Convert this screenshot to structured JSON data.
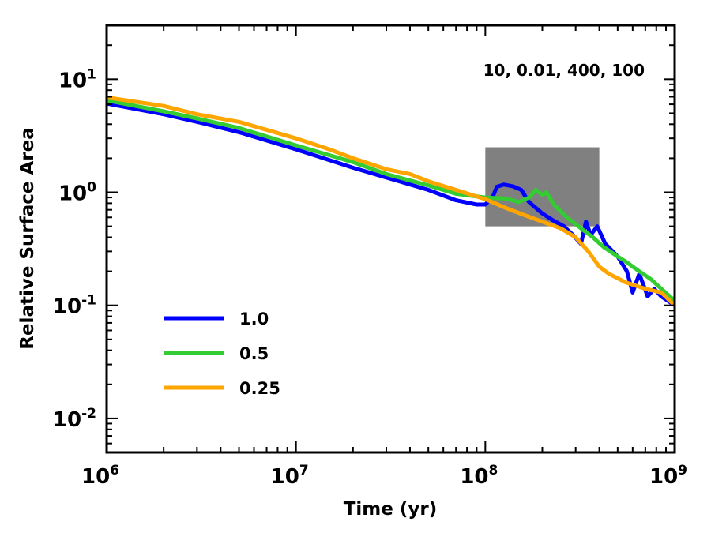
{
  "chart_data": {
    "type": "line",
    "title": "",
    "xlabel": "Time (yr)",
    "ylabel": "Relative Surface Area",
    "xscale": "log",
    "yscale": "log",
    "xlim": [
      1000000,
      1000000000
    ],
    "ylim": [
      0.005,
      30
    ],
    "annotation": "10, 0.01, 400, 100",
    "shaded_region": {
      "x": [
        100000000,
        400000000
      ],
      "y": [
        0.5,
        2.5
      ],
      "color": "#808080"
    },
    "x_ticks": [
      {
        "value": 1000000,
        "base": "10",
        "exp": "6"
      },
      {
        "value": 10000000,
        "base": "10",
        "exp": "7"
      },
      {
        "value": 100000000,
        "base": "10",
        "exp": "8"
      },
      {
        "value": 1000000000,
        "base": "10",
        "exp": "9"
      }
    ],
    "y_ticks": [
      {
        "value": 10,
        "base": "10",
        "exp": "1"
      },
      {
        "value": 1,
        "base": "10",
        "exp": "0"
      },
      {
        "value": 0.1,
        "base": "10",
        "exp": "-1"
      },
      {
        "value": 0.01,
        "base": "10",
        "exp": "-2"
      }
    ],
    "legend_position": "lower-left",
    "series": [
      {
        "name": "1.0",
        "color": "#0000ff",
        "points": [
          [
            1000000.0,
            6.1
          ],
          [
            2000000.0,
            4.9
          ],
          [
            3000000.0,
            4.2
          ],
          [
            5000000.0,
            3.4
          ],
          [
            10000000.0,
            2.4
          ],
          [
            20000000.0,
            1.65
          ],
          [
            30000000.0,
            1.35
          ],
          [
            50000000.0,
            1.05
          ],
          [
            70000000.0,
            0.85
          ],
          [
            90000000.0,
            0.78
          ],
          [
            100000000.0,
            0.78
          ],
          [
            110000000.0,
            0.93
          ],
          [
            115000000.0,
            1.12
          ],
          [
            125000000.0,
            1.17
          ],
          [
            140000000.0,
            1.13
          ],
          [
            155000000.0,
            1.05
          ],
          [
            170000000.0,
            0.82
          ],
          [
            200000000.0,
            0.65
          ],
          [
            230000000.0,
            0.56
          ],
          [
            260000000.0,
            0.5
          ],
          [
            290000000.0,
            0.42
          ],
          [
            320000000.0,
            0.35
          ],
          [
            340000000.0,
            0.55
          ],
          [
            360000000.0,
            0.42
          ],
          [
            390000000.0,
            0.5
          ],
          [
            430000000.0,
            0.35
          ],
          [
            500000000.0,
            0.27
          ],
          [
            560000000.0,
            0.2
          ],
          [
            600000000.0,
            0.13
          ],
          [
            650000000.0,
            0.19
          ],
          [
            720000000.0,
            0.12
          ],
          [
            780000000.0,
            0.14
          ],
          [
            850000000.0,
            0.12
          ],
          [
            1000000000.0,
            0.1
          ]
        ]
      },
      {
        "name": "0.5",
        "color": "#33cc33",
        "points": [
          [
            1000000.0,
            6.5
          ],
          [
            2000000.0,
            5.2
          ],
          [
            3000000.0,
            4.5
          ],
          [
            5000000.0,
            3.7
          ],
          [
            10000000.0,
            2.6
          ],
          [
            20000000.0,
            1.85
          ],
          [
            30000000.0,
            1.45
          ],
          [
            50000000.0,
            1.15
          ],
          [
            70000000.0,
            0.97
          ],
          [
            100000000.0,
            0.9
          ],
          [
            130000000.0,
            0.88
          ],
          [
            150000000.0,
            0.82
          ],
          [
            170000000.0,
            0.9
          ],
          [
            185000000.0,
            1.05
          ],
          [
            200000000.0,
            0.95
          ],
          [
            210000000.0,
            1.0
          ],
          [
            230000000.0,
            0.78
          ],
          [
            270000000.0,
            0.6
          ],
          [
            320000000.0,
            0.48
          ],
          [
            370000000.0,
            0.4
          ],
          [
            420000000.0,
            0.33
          ],
          [
            500000000.0,
            0.27
          ],
          [
            560000000.0,
            0.24
          ],
          [
            650000000.0,
            0.2
          ],
          [
            750000000.0,
            0.17
          ],
          [
            850000000.0,
            0.14
          ],
          [
            1000000000.0,
            0.11
          ]
        ]
      },
      {
        "name": "0.25",
        "color": "#ffa500",
        "points": [
          [
            1000000.0,
            6.9
          ],
          [
            2000000.0,
            5.8
          ],
          [
            3000000.0,
            4.9
          ],
          [
            5000000.0,
            4.2
          ],
          [
            10000000.0,
            3.0
          ],
          [
            15000000.0,
            2.4
          ],
          [
            20000000.0,
            2.0
          ],
          [
            30000000.0,
            1.6
          ],
          [
            40000000.0,
            1.45
          ],
          [
            50000000.0,
            1.25
          ],
          [
            70000000.0,
            1.05
          ],
          [
            100000000.0,
            0.87
          ],
          [
            130000000.0,
            0.72
          ],
          [
            160000000.0,
            0.63
          ],
          [
            200000000.0,
            0.55
          ],
          [
            250000000.0,
            0.48
          ],
          [
            300000000.0,
            0.4
          ],
          [
            350000000.0,
            0.3
          ],
          [
            400000000.0,
            0.22
          ],
          [
            450000000.0,
            0.19
          ],
          [
            550000000.0,
            0.16
          ],
          [
            700000000.0,
            0.14
          ],
          [
            850000000.0,
            0.13
          ],
          [
            1000000000.0,
            0.1
          ]
        ]
      }
    ]
  }
}
